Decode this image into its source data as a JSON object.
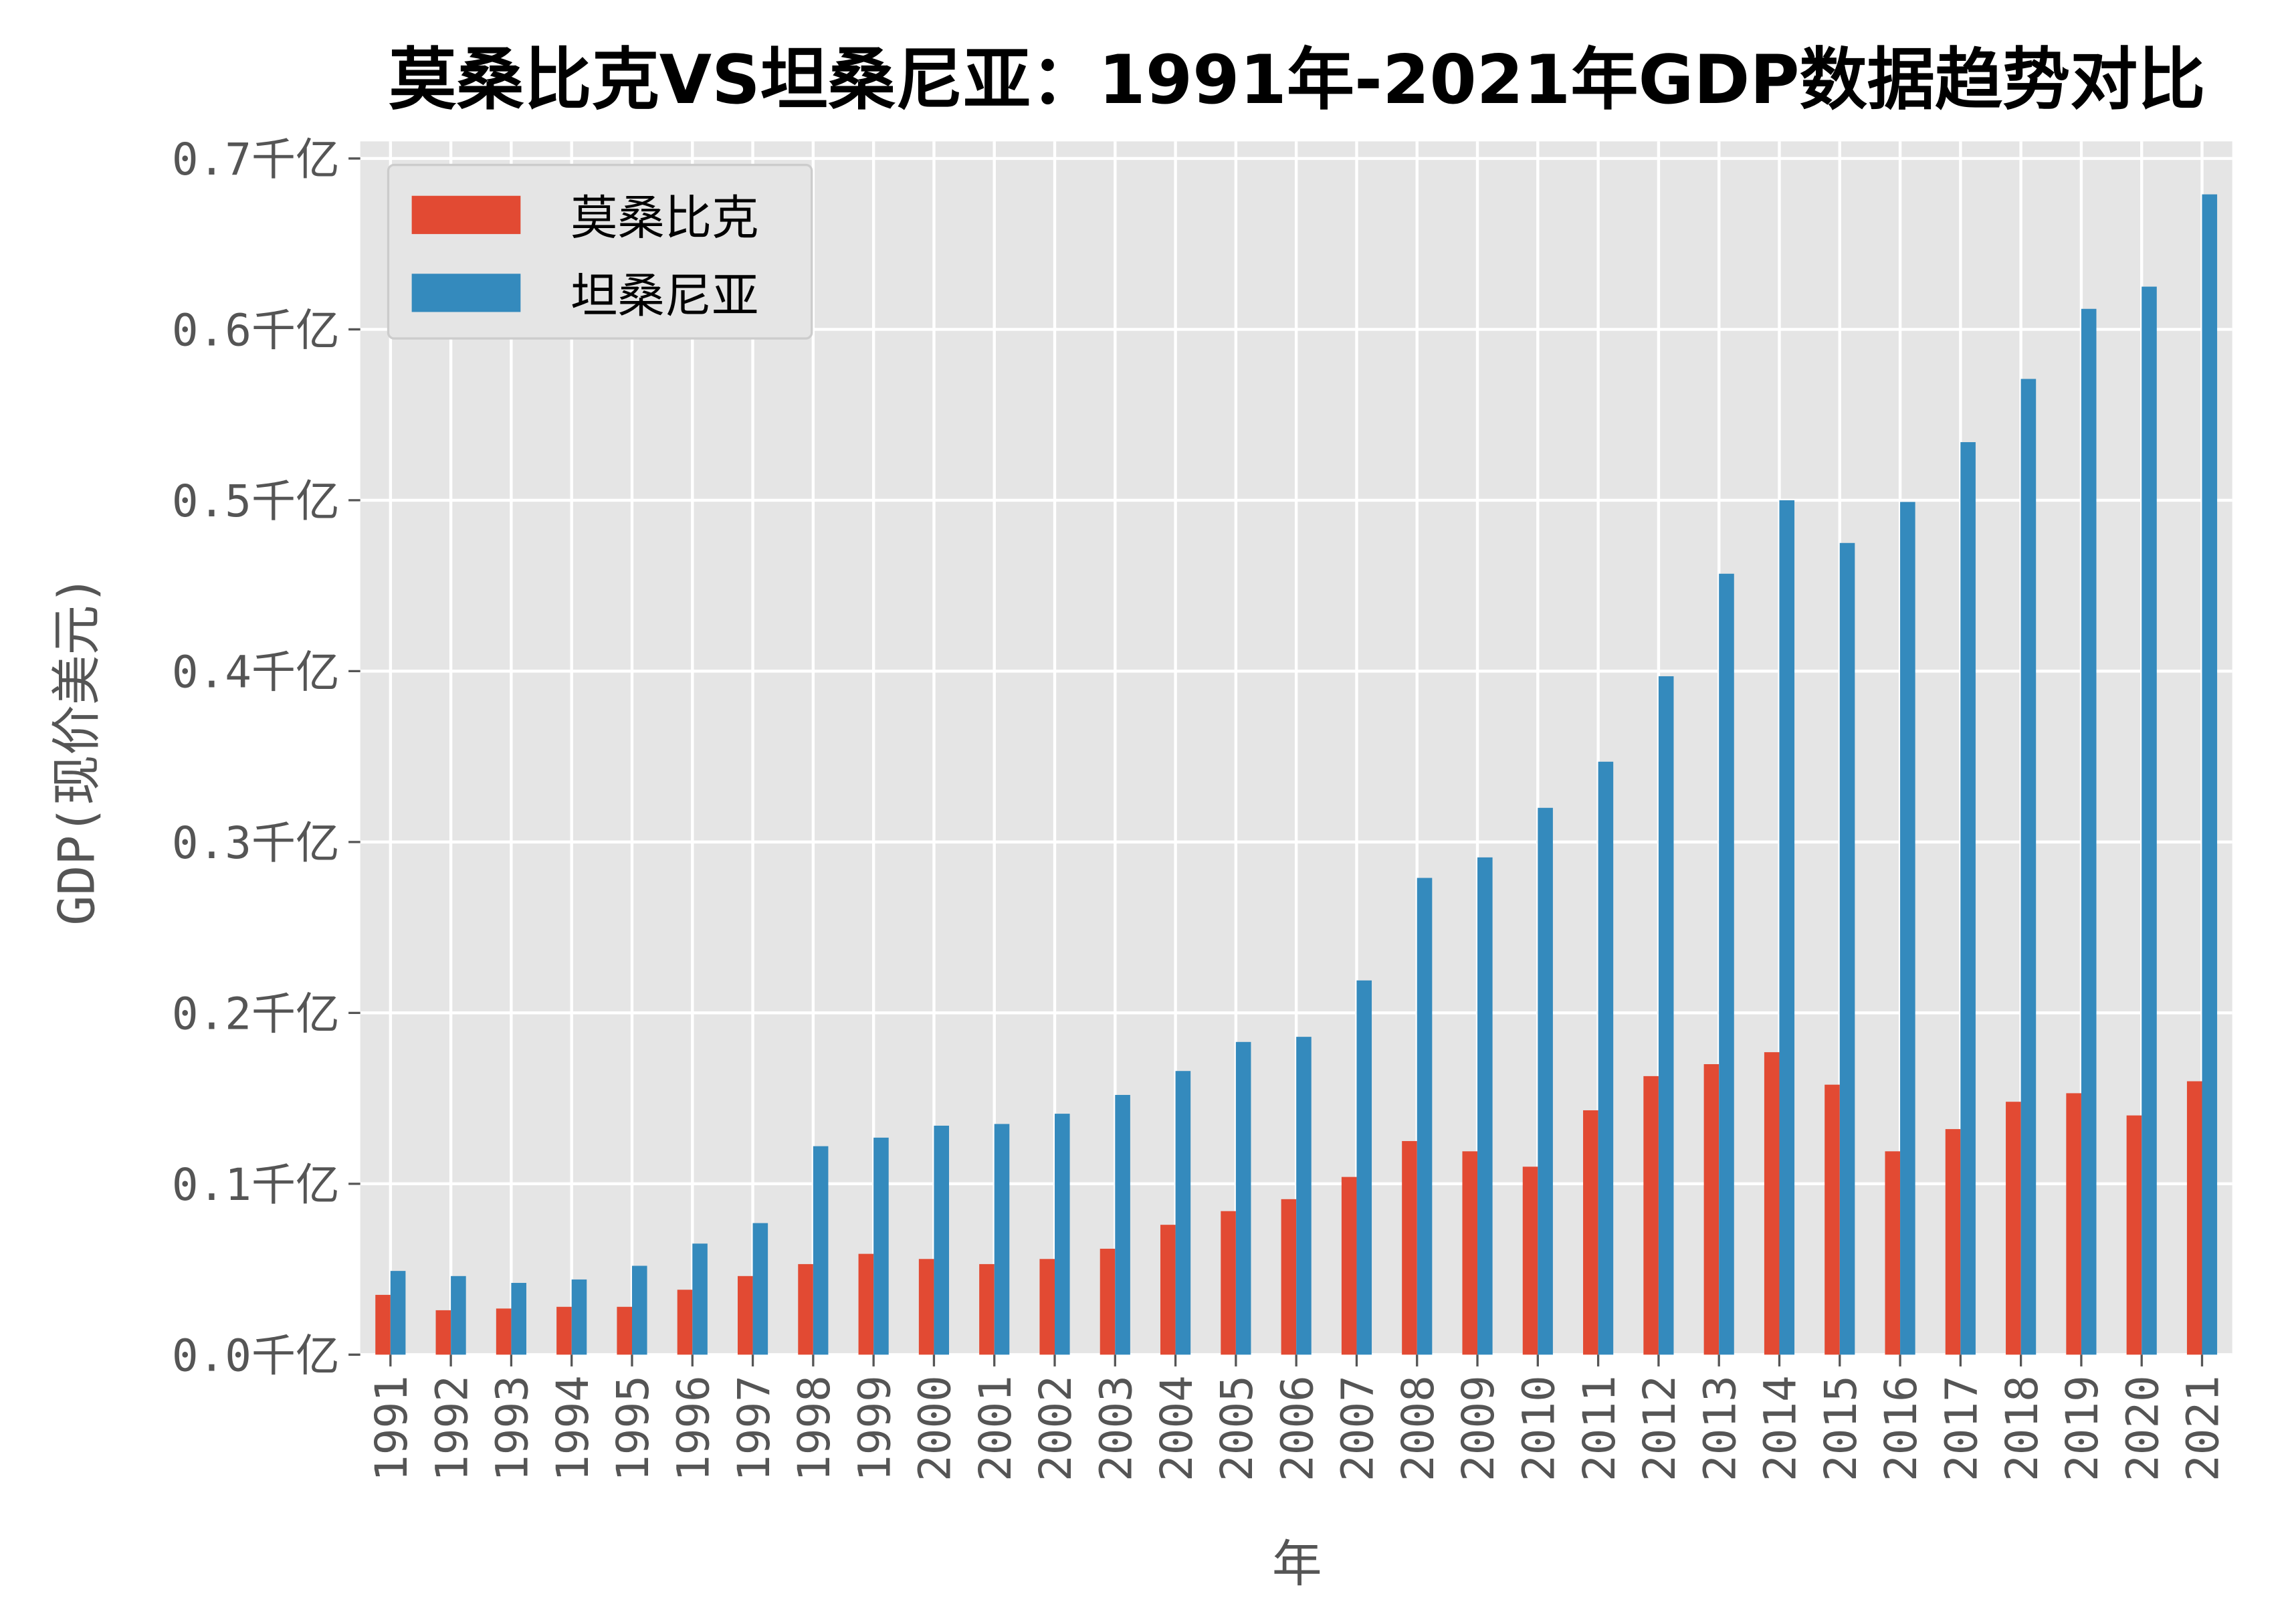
{
  "chart_data": {
    "type": "bar",
    "title": "莫桑比克VS坦桑尼亚：1991年-2021年GDP数据趋势对比",
    "xlabel": "年",
    "ylabel": "GDP(现价美元)",
    "ylim": [
      0,
      0.71
    ],
    "yticks": [
      "0.0千亿",
      "0.1千亿",
      "0.2千亿",
      "0.3千亿",
      "0.4千亿",
      "0.5千亿",
      "0.6千亿",
      "0.7千亿"
    ],
    "ytick_values": [
      0,
      0.1,
      0.2,
      0.3,
      0.4,
      0.5,
      0.6,
      0.7
    ],
    "grid": true,
    "legend_position": "top-left",
    "categories": [
      "1991",
      "1992",
      "1993",
      "1994",
      "1995",
      "1996",
      "1997",
      "1998",
      "1999",
      "2000",
      "2001",
      "2002",
      "2003",
      "2004",
      "2005",
      "2006",
      "2007",
      "2008",
      "2009",
      "2010",
      "2011",
      "2012",
      "2013",
      "2014",
      "2015",
      "2016",
      "2017",
      "2018",
      "2019",
      "2020",
      "2021"
    ],
    "series": [
      {
        "name": "莫桑比克",
        "color": "#E24A33",
        "values": [
          0.035,
          0.026,
          0.027,
          0.028,
          0.028,
          0.038,
          0.046,
          0.053,
          0.059,
          0.056,
          0.053,
          0.056,
          0.062,
          0.076,
          0.084,
          0.091,
          0.104,
          0.125,
          0.119,
          0.11,
          0.143,
          0.163,
          0.17,
          0.177,
          0.158,
          0.119,
          0.132,
          0.148,
          0.153,
          0.14,
          0.16
        ]
      },
      {
        "name": "坦桑尼亚",
        "color": "#348ABD",
        "values": [
          0.049,
          0.046,
          0.042,
          0.044,
          0.052,
          0.065,
          0.077,
          0.122,
          0.127,
          0.134,
          0.135,
          0.141,
          0.152,
          0.166,
          0.183,
          0.186,
          0.219,
          0.279,
          0.291,
          0.32,
          0.347,
          0.397,
          0.457,
          0.5,
          0.475,
          0.499,
          0.534,
          0.571,
          0.612,
          0.625,
          0.679
        ]
      }
    ]
  }
}
